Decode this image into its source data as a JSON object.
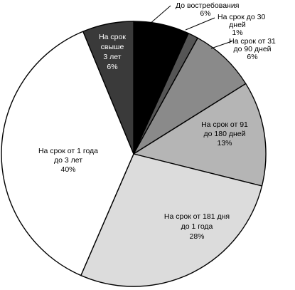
{
  "chart_data": {
    "type": "pie",
    "title": "",
    "slices": [
      {
        "lines": [
          "До востребования",
          "6%"
        ],
        "value": 6,
        "color": "#000000",
        "text_color": "#000000",
        "start_deg": 0,
        "end_deg": 24.5
      },
      {
        "lines": [
          "На срок до 30",
          "дней",
          "1%"
        ],
        "value": 1,
        "color": "#555555",
        "text_color": "#000000",
        "start_deg": 24.5,
        "end_deg": 29
      },
      {
        "lines": [
          "На срок от 31",
          "до 90 дней",
          "6%"
        ],
        "value": 6,
        "color": "#8a8a8a",
        "text_color": "#000000",
        "start_deg": 29,
        "end_deg": 58
      },
      {
        "lines": [
          "На срок от 91",
          "до 180 дней",
          "13%"
        ],
        "value": 13,
        "color": "#b5b5b5",
        "text_color": "#000000",
        "start_deg": 58,
        "end_deg": 104
      },
      {
        "lines": [
          "На срок от 181 дня",
          "до 1 года",
          "28%"
        ],
        "value": 28,
        "color": "#dcdcdc",
        "text_color": "#000000",
        "start_deg": 104,
        "end_deg": 203.5
      },
      {
        "lines": [
          "На срок от 1 года",
          "до 3 лет",
          "40%"
        ],
        "value": 40,
        "color": "#ffffff",
        "text_color": "#000000",
        "start_deg": 203.5,
        "end_deg": 337.5
      },
      {
        "lines": [
          "На срок",
          "свыше",
          "3 лет",
          "6%"
        ],
        "value": 6,
        "color": "#3a3a3a",
        "text_color": "#ffffff",
        "start_deg": 337.5,
        "end_deg": 360
      }
    ]
  }
}
